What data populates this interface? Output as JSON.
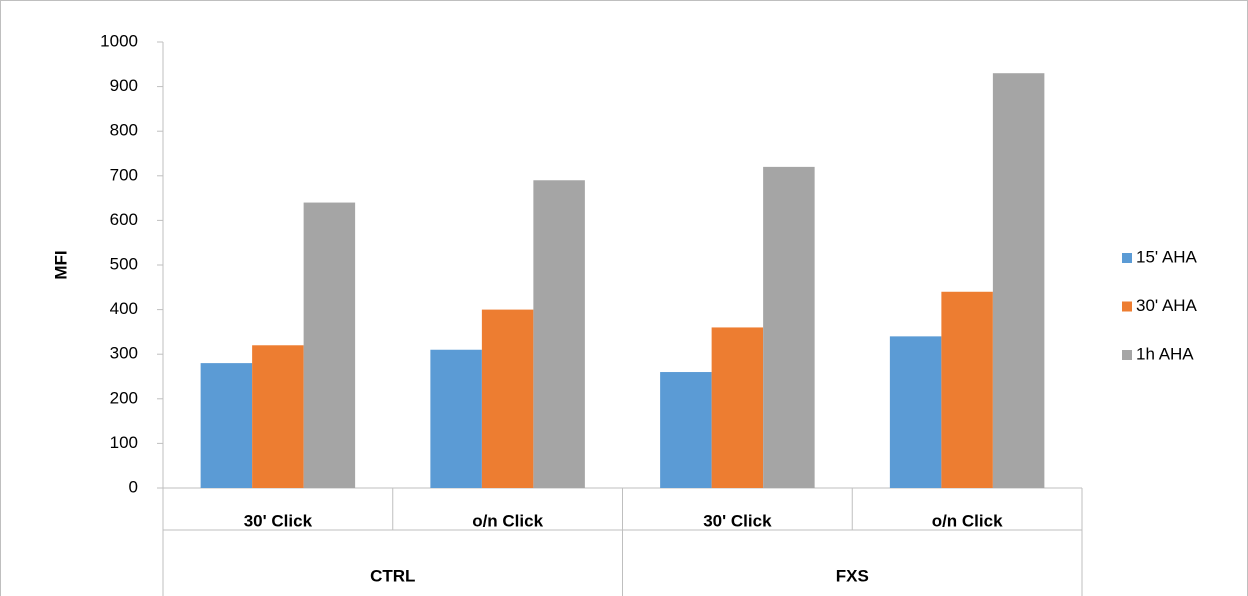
{
  "chart_data": {
    "type": "bar",
    "y_label": "MFI",
    "categories": [
      "30' Click",
      "o/n Click",
      "30' Click",
      "o/n Click"
    ],
    "group_labels": [
      "CTRL",
      null,
      "FXS",
      null
    ],
    "series": [
      {
        "name": "15' AHA",
        "color": "#5b9bd5",
        "values": [
          280,
          310,
          260,
          340
        ]
      },
      {
        "name": "30' AHA",
        "color": "#ed7d31",
        "values": [
          320,
          400,
          360,
          440
        ]
      },
      {
        "name": "1h AHA",
        "color": "#a5a5a5",
        "values": [
          640,
          690,
          720,
          930
        ]
      }
    ],
    "ylim": [
      0,
      1000
    ],
    "yticks": [
      0,
      100,
      200,
      300,
      400,
      500,
      600,
      700,
      800,
      900,
      1000
    ],
    "grid": false,
    "legend": "right"
  }
}
